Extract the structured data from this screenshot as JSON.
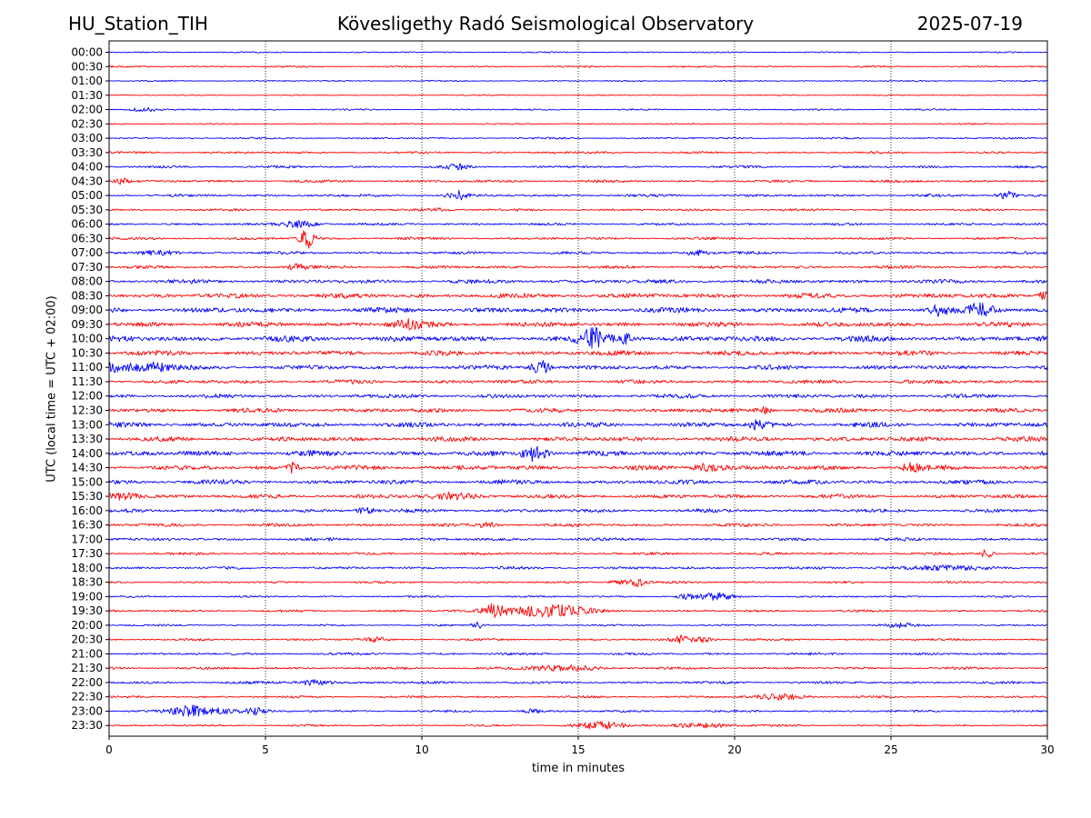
{
  "header": {
    "station": "HU_Station_TIH",
    "title": "Kövesligethy Radó Seismological Observatory",
    "date": "2025-07-19"
  },
  "chart_data": {
    "type": "line",
    "title": "Kövesligethy Radó Seismological Observatory",
    "xlabel": "time in minutes",
    "ylabel": "UTC (local time = UTC + 02:00)",
    "xlim": [
      0,
      30
    ],
    "xticks": [
      0,
      5,
      10,
      15,
      20,
      25,
      30
    ],
    "x_grid": "dotted vertical lines at major ticks",
    "colors": [
      "#0000ff",
      "#ff0000"
    ],
    "rows": [
      {
        "label": "00:00",
        "noise": 0.15,
        "events": []
      },
      {
        "label": "00:30",
        "noise": 0.2,
        "events": []
      },
      {
        "label": "01:00",
        "noise": 0.15,
        "events": []
      },
      {
        "label": "01:30",
        "noise": 0.12,
        "events": []
      },
      {
        "label": "02:00",
        "noise": 0.18,
        "events": [
          {
            "t": 1.1,
            "amp": 0.45,
            "dur": 0.4
          }
        ]
      },
      {
        "label": "02:30",
        "noise": 0.15,
        "events": []
      },
      {
        "label": "03:00",
        "noise": 0.2,
        "events": []
      },
      {
        "label": "03:30",
        "noise": 0.25,
        "events": []
      },
      {
        "label": "04:00",
        "noise": 0.28,
        "events": [
          {
            "t": 11.1,
            "amp": 0.45,
            "dur": 0.3
          }
        ]
      },
      {
        "label": "04:30",
        "noise": 0.3,
        "events": [
          {
            "t": 0.4,
            "amp": 0.5,
            "dur": 0.2
          }
        ]
      },
      {
        "label": "05:00",
        "noise": 0.3,
        "events": [
          {
            "t": 11.1,
            "amp": 0.9,
            "dur": 0.3
          },
          {
            "t": 28.7,
            "amp": 0.9,
            "dur": 0.3
          }
        ]
      },
      {
        "label": "05:30",
        "noise": 0.25,
        "events": [
          {
            "t": 10.5,
            "amp": 0.3,
            "dur": 0.5
          }
        ]
      },
      {
        "label": "06:00",
        "noise": 0.28,
        "events": [
          {
            "t": 6.1,
            "amp": 0.6,
            "dur": 0.6
          }
        ]
      },
      {
        "label": "06:30",
        "noise": 0.3,
        "events": [
          {
            "t": 6.35,
            "amp": 2.0,
            "dur": 0.25
          }
        ]
      },
      {
        "label": "07:00",
        "noise": 0.32,
        "events": [
          {
            "t": 1.5,
            "amp": 0.4,
            "dur": 0.5
          },
          {
            "t": 18.8,
            "amp": 0.5,
            "dur": 0.4
          }
        ]
      },
      {
        "label": "07:30",
        "noise": 0.35,
        "events": [
          {
            "t": 6.0,
            "amp": 0.5,
            "dur": 0.3
          }
        ]
      },
      {
        "label": "08:00",
        "noise": 0.45,
        "events": []
      },
      {
        "label": "08:30",
        "noise": 0.55,
        "events": [
          {
            "t": 29.9,
            "amp": 0.8,
            "dur": 0.2
          }
        ]
      },
      {
        "label": "09:00",
        "noise": 0.6,
        "events": [
          {
            "t": 27.9,
            "amp": 1.3,
            "dur": 0.4
          },
          {
            "t": 26.5,
            "amp": 0.9,
            "dur": 0.3
          }
        ]
      },
      {
        "label": "09:30",
        "noise": 0.55,
        "events": [
          {
            "t": 9.5,
            "amp": 0.8,
            "dur": 0.5
          }
        ]
      },
      {
        "label": "10:00",
        "noise": 0.65,
        "events": [
          {
            "t": 15.5,
            "amp": 1.8,
            "dur": 0.4
          },
          {
            "t": 16.5,
            "amp": 0.9,
            "dur": 0.4
          }
        ]
      },
      {
        "label": "10:30",
        "noise": 0.55,
        "events": []
      },
      {
        "label": "11:00",
        "noise": 0.5,
        "events": [
          {
            "t": 0.1,
            "amp": 0.9,
            "dur": 0.2
          },
          {
            "t": 1.2,
            "amp": 1.0,
            "dur": 0.8
          },
          {
            "t": 13.8,
            "amp": 1.3,
            "dur": 0.3
          }
        ]
      },
      {
        "label": "11:30",
        "noise": 0.45,
        "events": []
      },
      {
        "label": "12:00",
        "noise": 0.45,
        "events": []
      },
      {
        "label": "12:30",
        "noise": 0.5,
        "events": [
          {
            "t": 20.9,
            "amp": 0.6,
            "dur": 0.3
          }
        ]
      },
      {
        "label": "13:00",
        "noise": 0.55,
        "events": [
          {
            "t": 20.8,
            "amp": 1.0,
            "dur": 0.3
          }
        ]
      },
      {
        "label": "13:30",
        "noise": 0.55,
        "events": []
      },
      {
        "label": "14:00",
        "noise": 0.6,
        "events": [
          {
            "t": 13.6,
            "amp": 1.5,
            "dur": 0.4
          }
        ]
      },
      {
        "label": "14:30",
        "noise": 0.55,
        "events": [
          {
            "t": 5.9,
            "amp": 1.0,
            "dur": 0.2
          },
          {
            "t": 19.2,
            "amp": 0.8,
            "dur": 0.5
          },
          {
            "t": 25.6,
            "amp": 0.7,
            "dur": 0.3
          }
        ]
      },
      {
        "label": "15:00",
        "noise": 0.5,
        "events": []
      },
      {
        "label": "15:30",
        "noise": 0.45,
        "events": [
          {
            "t": 11.0,
            "amp": 0.6,
            "dur": 0.8
          },
          {
            "t": 0.5,
            "amp": 0.6,
            "dur": 0.6
          }
        ]
      },
      {
        "label": "16:00",
        "noise": 0.4,
        "events": [
          {
            "t": 8.2,
            "amp": 0.6,
            "dur": 0.3
          }
        ]
      },
      {
        "label": "16:30",
        "noise": 0.35,
        "events": [
          {
            "t": 12.1,
            "amp": 0.5,
            "dur": 0.3
          }
        ]
      },
      {
        "label": "17:00",
        "noise": 0.35,
        "events": []
      },
      {
        "label": "17:30",
        "noise": 0.3,
        "events": [
          {
            "t": 28.1,
            "amp": 1.1,
            "dur": 0.2
          }
        ]
      },
      {
        "label": "18:00",
        "noise": 0.3,
        "events": [
          {
            "t": 26.5,
            "amp": 0.4,
            "dur": 1.5
          }
        ]
      },
      {
        "label": "18:30",
        "noise": 0.25,
        "events": [
          {
            "t": 16.9,
            "amp": 0.8,
            "dur": 0.25
          },
          {
            "t": 16.3,
            "amp": 0.5,
            "dur": 0.3
          }
        ]
      },
      {
        "label": "19:00",
        "noise": 0.22,
        "events": [
          {
            "t": 19.4,
            "amp": 0.6,
            "dur": 0.6
          },
          {
            "t": 18.4,
            "amp": 0.5,
            "dur": 0.3
          }
        ]
      },
      {
        "label": "19:30",
        "noise": 0.25,
        "events": [
          {
            "t": 12.3,
            "amp": 1.1,
            "dur": 0.3
          },
          {
            "t": 13.9,
            "amp": 1.2,
            "dur": 1.5
          }
        ]
      },
      {
        "label": "20:00",
        "noise": 0.2,
        "events": [
          {
            "t": 11.8,
            "amp": 0.6,
            "dur": 0.2
          },
          {
            "t": 25.3,
            "amp": 0.4,
            "dur": 0.5
          }
        ]
      },
      {
        "label": "20:30",
        "noise": 0.25,
        "events": [
          {
            "t": 18.3,
            "amp": 0.8,
            "dur": 0.3
          },
          {
            "t": 19.0,
            "amp": 0.6,
            "dur": 0.3
          },
          {
            "t": 8.5,
            "amp": 0.4,
            "dur": 0.4
          }
        ]
      },
      {
        "label": "21:00",
        "noise": 0.28,
        "events": []
      },
      {
        "label": "21:30",
        "noise": 0.28,
        "events": [
          {
            "t": 14.5,
            "amp": 0.5,
            "dur": 1.2
          }
        ]
      },
      {
        "label": "22:00",
        "noise": 0.3,
        "events": [
          {
            "t": 6.5,
            "amp": 0.5,
            "dur": 0.6
          }
        ]
      },
      {
        "label": "22:30",
        "noise": 0.25,
        "events": [
          {
            "t": 21.5,
            "amp": 0.6,
            "dur": 0.8
          }
        ]
      },
      {
        "label": "23:00",
        "noise": 0.25,
        "events": [
          {
            "t": 2.5,
            "amp": 0.8,
            "dur": 0.5
          },
          {
            "t": 3.3,
            "amp": 0.6,
            "dur": 1.0
          },
          {
            "t": 4.7,
            "amp": 0.6,
            "dur": 0.3
          },
          {
            "t": 13.5,
            "amp": 0.4,
            "dur": 0.3
          }
        ]
      },
      {
        "label": "23:30",
        "noise": 0.22,
        "events": [
          {
            "t": 15.7,
            "amp": 0.7,
            "dur": 0.8
          },
          {
            "t": 19.0,
            "amp": 0.4,
            "dur": 1.0
          }
        ]
      }
    ]
  }
}
